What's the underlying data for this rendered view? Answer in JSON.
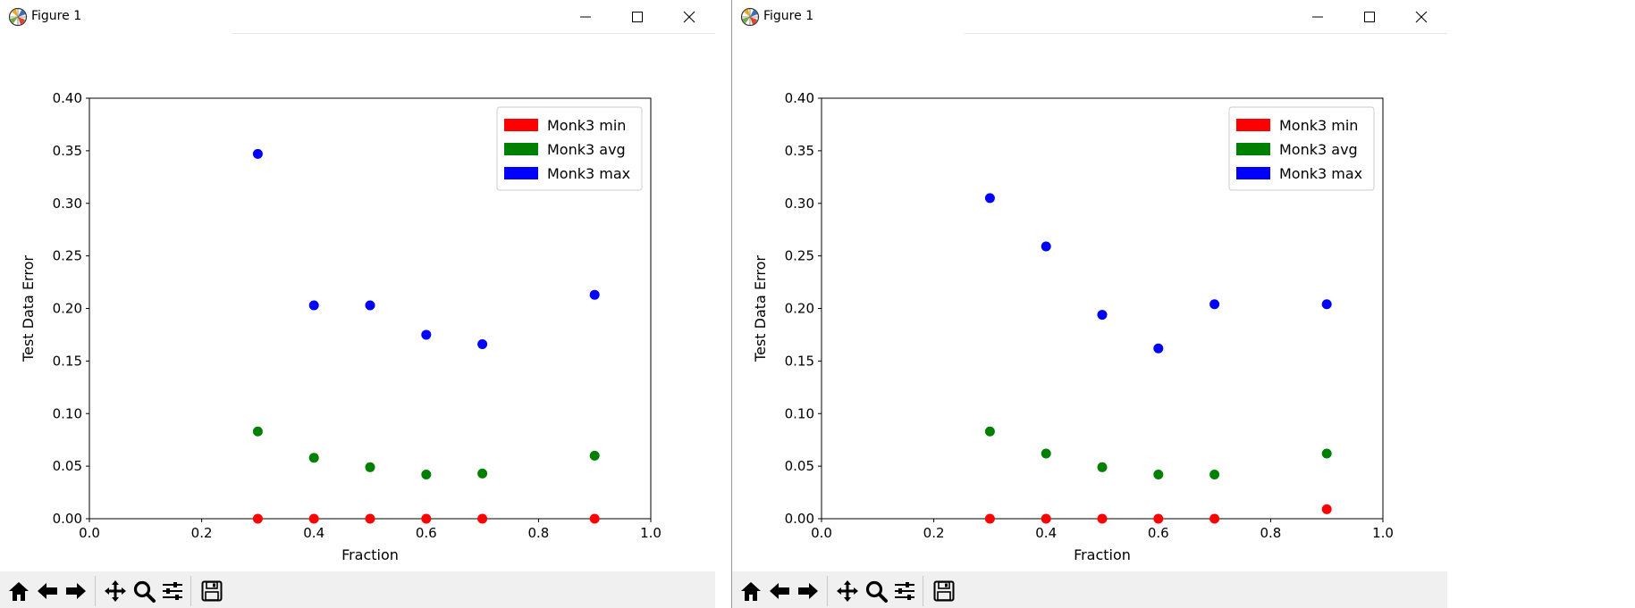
{
  "windows": [
    {
      "title": "Figure 1",
      "toolbar": [
        "home-icon",
        "back-icon",
        "forward-icon",
        "pan-icon",
        "zoom-icon",
        "configure-icon",
        "save-icon"
      ],
      "chart_data": {
        "type": "scatter",
        "title": "",
        "xlabel": "Fraction",
        "ylabel": "Test Data Error",
        "xlim": [
          0.0,
          1.0
        ],
        "ylim": [
          0.0,
          0.4
        ],
        "xticks": [
          "0.0",
          "0.2",
          "0.4",
          "0.6",
          "0.8",
          "1.0"
        ],
        "yticks": [
          "0.00",
          "0.05",
          "0.10",
          "0.15",
          "0.20",
          "0.25",
          "0.30",
          "0.35",
          "0.40"
        ],
        "legend_position": "top-right",
        "grid": false,
        "series": [
          {
            "name": "Monk3 min",
            "color": "#ff0000",
            "x": [
              0.3,
              0.4,
              0.5,
              0.6,
              0.7,
              0.9
            ],
            "y": [
              0.0,
              0.0,
              0.0,
              0.0,
              0.0,
              0.0
            ]
          },
          {
            "name": "Monk3 avg",
            "color": "#008000",
            "x": [
              0.3,
              0.4,
              0.5,
              0.6,
              0.7,
              0.9
            ],
            "y": [
              0.083,
              0.058,
              0.049,
              0.042,
              0.043,
              0.06
            ]
          },
          {
            "name": "Monk3 max",
            "color": "#0000ff",
            "x": [
              0.3,
              0.4,
              0.5,
              0.6,
              0.7,
              0.9
            ],
            "y": [
              0.347,
              0.203,
              0.203,
              0.175,
              0.166,
              0.213
            ]
          }
        ]
      }
    },
    {
      "title": "Figure 1",
      "toolbar": [
        "home-icon",
        "back-icon",
        "forward-icon",
        "pan-icon",
        "zoom-icon",
        "configure-icon",
        "save-icon"
      ],
      "chart_data": {
        "type": "scatter",
        "title": "",
        "xlabel": "Fraction",
        "ylabel": "Test Data Error",
        "xlim": [
          0.0,
          1.0
        ],
        "ylim": [
          0.0,
          0.4
        ],
        "xticks": [
          "0.0",
          "0.2",
          "0.4",
          "0.6",
          "0.8",
          "1.0"
        ],
        "yticks": [
          "0.00",
          "0.05",
          "0.10",
          "0.15",
          "0.20",
          "0.25",
          "0.30",
          "0.35",
          "0.40"
        ],
        "legend_position": "top-right",
        "grid": false,
        "series": [
          {
            "name": "Monk3 min",
            "color": "#ff0000",
            "x": [
              0.3,
              0.4,
              0.5,
              0.6,
              0.7,
              0.9
            ],
            "y": [
              0.0,
              0.0,
              0.0,
              0.0,
              0.0,
              0.009
            ]
          },
          {
            "name": "Monk3 avg",
            "color": "#008000",
            "x": [
              0.3,
              0.4,
              0.5,
              0.6,
              0.7,
              0.9
            ],
            "y": [
              0.083,
              0.062,
              0.049,
              0.042,
              0.042,
              0.062
            ]
          },
          {
            "name": "Monk3 max",
            "color": "#0000ff",
            "x": [
              0.3,
              0.4,
              0.5,
              0.6,
              0.7,
              0.9
            ],
            "y": [
              0.305,
              0.259,
              0.194,
              0.162,
              0.204,
              0.204
            ]
          }
        ]
      }
    }
  ]
}
